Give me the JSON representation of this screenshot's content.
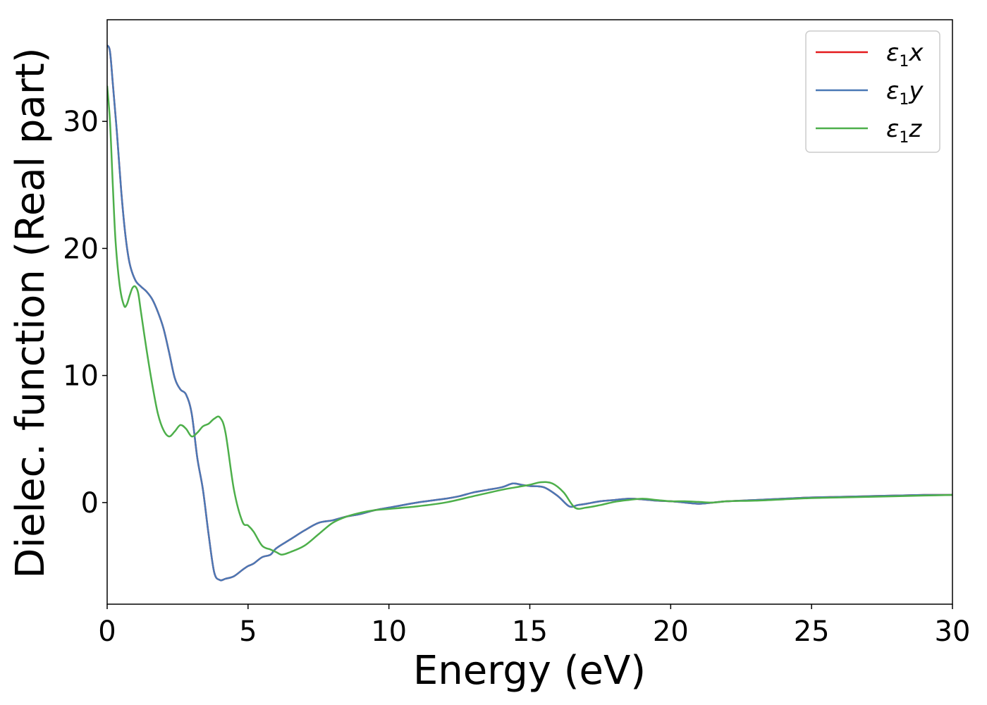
{
  "chart_data": {
    "type": "line",
    "title": "",
    "xlabel": "Energy (eV)",
    "ylabel": "Dielec. function (Real part)",
    "xlim": [
      0,
      30
    ],
    "ylim": [
      -8,
      38
    ],
    "xticks": [
      0,
      5,
      10,
      15,
      20,
      25,
      30
    ],
    "yticks": [
      0,
      10,
      20,
      30
    ],
    "grid": false,
    "legend_position": "top-right",
    "series": [
      {
        "name": "ε1x",
        "legend_main": "ε",
        "legend_sub": "1",
        "legend_var": "x",
        "color": "#e41a1c",
        "x": [
          0.0,
          0.1,
          0.2,
          0.35,
          0.5,
          0.65,
          0.8,
          1.0,
          1.2,
          1.4,
          1.6,
          1.8,
          2.0,
          2.2,
          2.4,
          2.6,
          2.8,
          3.0,
          3.2,
          3.4,
          3.6,
          3.8,
          4.0,
          4.2,
          4.5,
          4.8,
          5.0,
          5.2,
          5.5,
          5.8,
          6.0,
          6.5,
          7.0,
          7.5,
          8.0,
          8.5,
          9.0,
          9.5,
          10.0,
          11.0,
          12.0,
          12.5,
          13.0,
          13.5,
          14.0,
          14.4,
          14.7,
          15.0,
          15.5,
          16.0,
          16.4,
          16.7,
          17.0,
          17.5,
          18.0,
          18.5,
          19.0,
          19.5,
          20.0,
          20.5,
          21.0,
          21.5,
          22.0,
          23.0,
          24.0,
          25.0,
          26.0,
          27.0,
          28.0,
          29.0,
          30.0
        ],
        "values": [
          36.0,
          35.5,
          33.0,
          29.0,
          24.5,
          21.0,
          18.8,
          17.5,
          17.0,
          16.6,
          16.0,
          15.0,
          13.7,
          11.8,
          9.8,
          8.9,
          8.5,
          7.0,
          3.5,
          1.0,
          -2.5,
          -5.5,
          -6.1,
          -6.0,
          -5.8,
          -5.3,
          -5.0,
          -4.8,
          -4.3,
          -4.1,
          -3.6,
          -2.9,
          -2.2,
          -1.6,
          -1.4,
          -1.1,
          -0.9,
          -0.6,
          -0.4,
          0.0,
          0.3,
          0.5,
          0.8,
          1.0,
          1.2,
          1.5,
          1.4,
          1.3,
          1.2,
          0.5,
          -0.3,
          -0.2,
          -0.1,
          0.1,
          0.2,
          0.3,
          0.25,
          0.15,
          0.1,
          0.0,
          -0.1,
          0.0,
          0.1,
          0.2,
          0.3,
          0.4,
          0.45,
          0.5,
          0.55,
          0.6,
          0.6
        ]
      },
      {
        "name": "ε1y",
        "legend_main": "ε",
        "legend_sub": "1",
        "legend_var": "y",
        "color": "#4a78b5",
        "x": [
          0.0,
          0.1,
          0.2,
          0.35,
          0.5,
          0.65,
          0.8,
          1.0,
          1.2,
          1.4,
          1.6,
          1.8,
          2.0,
          2.2,
          2.4,
          2.6,
          2.8,
          3.0,
          3.2,
          3.4,
          3.6,
          3.8,
          4.0,
          4.2,
          4.5,
          4.8,
          5.0,
          5.2,
          5.5,
          5.8,
          6.0,
          6.5,
          7.0,
          7.5,
          8.0,
          8.5,
          9.0,
          9.5,
          10.0,
          11.0,
          12.0,
          12.5,
          13.0,
          13.5,
          14.0,
          14.4,
          14.7,
          15.0,
          15.5,
          16.0,
          16.4,
          16.7,
          17.0,
          17.5,
          18.0,
          18.5,
          19.0,
          19.5,
          20.0,
          20.5,
          21.0,
          21.5,
          22.0,
          23.0,
          24.0,
          25.0,
          26.0,
          27.0,
          28.0,
          29.0,
          30.0
        ],
        "values": [
          36.0,
          35.5,
          33.0,
          29.0,
          24.5,
          21.0,
          18.8,
          17.5,
          17.0,
          16.6,
          16.0,
          15.0,
          13.7,
          11.8,
          9.8,
          8.9,
          8.5,
          7.0,
          3.5,
          1.0,
          -2.5,
          -5.5,
          -6.1,
          -6.0,
          -5.8,
          -5.3,
          -5.0,
          -4.8,
          -4.3,
          -4.1,
          -3.6,
          -2.9,
          -2.2,
          -1.6,
          -1.4,
          -1.1,
          -0.9,
          -0.6,
          -0.4,
          0.0,
          0.3,
          0.5,
          0.8,
          1.0,
          1.2,
          1.5,
          1.4,
          1.3,
          1.2,
          0.5,
          -0.3,
          -0.2,
          -0.1,
          0.1,
          0.2,
          0.3,
          0.25,
          0.15,
          0.1,
          0.0,
          -0.1,
          0.0,
          0.1,
          0.2,
          0.3,
          0.4,
          0.45,
          0.5,
          0.55,
          0.6,
          0.6
        ]
      },
      {
        "name": "ε1z",
        "legend_main": "ε",
        "legend_sub": "1",
        "legend_var": "z",
        "color": "#4daf4a",
        "x": [
          0.0,
          0.1,
          0.2,
          0.3,
          0.45,
          0.6,
          0.7,
          0.8,
          0.9,
          1.0,
          1.1,
          1.2,
          1.4,
          1.6,
          1.8,
          2.0,
          2.2,
          2.4,
          2.6,
          2.8,
          3.0,
          3.2,
          3.4,
          3.6,
          3.8,
          4.0,
          4.2,
          4.5,
          4.8,
          5.0,
          5.2,
          5.5,
          5.8,
          6.0,
          6.2,
          6.5,
          7.0,
          7.5,
          8.0,
          8.5,
          9.0,
          9.5,
          10.0,
          11.0,
          12.0,
          13.0,
          14.0,
          14.5,
          15.0,
          15.4,
          15.8,
          16.2,
          16.6,
          17.0,
          17.5,
          18.0,
          18.5,
          19.0,
          19.5,
          20.0,
          20.5,
          21.0,
          21.5,
          22.0,
          23.0,
          24.0,
          25.0,
          26.0,
          27.0,
          28.0,
          29.0,
          30.0
        ],
        "values": [
          32.8,
          30.0,
          25.0,
          20.5,
          17.0,
          15.5,
          15.6,
          16.3,
          16.9,
          17.0,
          16.5,
          15.0,
          12.0,
          9.3,
          7.0,
          5.7,
          5.2,
          5.6,
          6.1,
          5.8,
          5.2,
          5.5,
          6.0,
          6.2,
          6.6,
          6.7,
          5.5,
          1.0,
          -1.5,
          -1.8,
          -2.3,
          -3.4,
          -3.7,
          -3.9,
          -4.1,
          -3.9,
          -3.4,
          -2.5,
          -1.6,
          -1.1,
          -0.8,
          -0.6,
          -0.5,
          -0.3,
          0.0,
          0.5,
          1.0,
          1.2,
          1.4,
          1.6,
          1.5,
          0.8,
          -0.4,
          -0.4,
          -0.2,
          0.05,
          0.2,
          0.3,
          0.2,
          0.1,
          0.1,
          0.05,
          0.0,
          0.1,
          0.15,
          0.25,
          0.35,
          0.4,
          0.45,
          0.5,
          0.55,
          0.6
        ]
      }
    ]
  }
}
